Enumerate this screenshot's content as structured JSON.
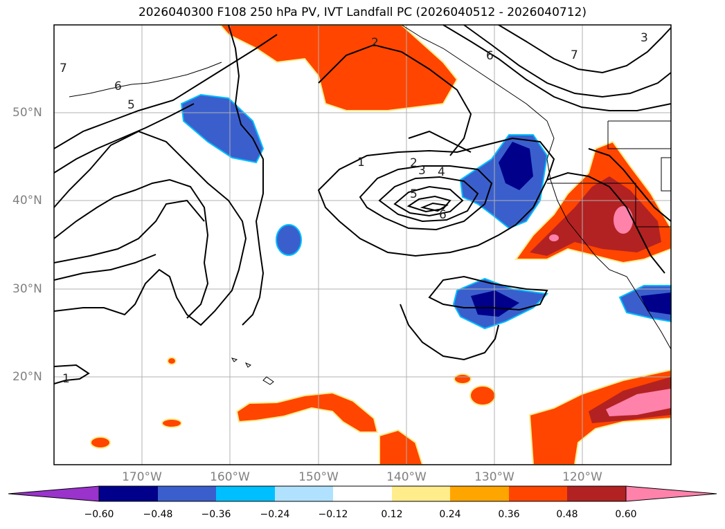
{
  "title": "2026040300 F108 250 hPa PV, IVT Landfall PC (2026040512 - 2026040712)",
  "lat_ticks": [
    "50°N",
    "40°N",
    "30°N",
    "20°N"
  ],
  "lon_ticks": [
    "170°W",
    "160°W",
    "150°W",
    "140°W",
    "130°W",
    "120°W"
  ],
  "contour_labels": [
    "7",
    "6",
    "5",
    "2",
    "6",
    "7",
    "3",
    "1",
    "2",
    "3",
    "4",
    "5",
    "6",
    "1"
  ],
  "colorbar": {
    "ticks": [
      "−0.60",
      "−0.48",
      "−0.36",
      "−0.24",
      "−0.12",
      "0.12",
      "0.24",
      "0.36",
      "0.48",
      "0.60"
    ],
    "colors": [
      "#9933cc",
      "#00008b",
      "#3a5fcd",
      "#00bfff",
      "#b0e2ff",
      "#ffffff",
      "#ffec8b",
      "#ffa500",
      "#ff4500",
      "#b22222",
      "#ff82ab",
      "#ff82ab"
    ]
  },
  "palette": {
    "neg_strong": "#00008b",
    "neg_mid": "#3a5fcd",
    "neg_light": "#00bfff",
    "pos_light": "#ffec8b",
    "pos_mid": "#ffa500",
    "pos_main": "#ff4500",
    "pos_strong": "#b22222",
    "pos_max": "#ff82ab"
  }
}
